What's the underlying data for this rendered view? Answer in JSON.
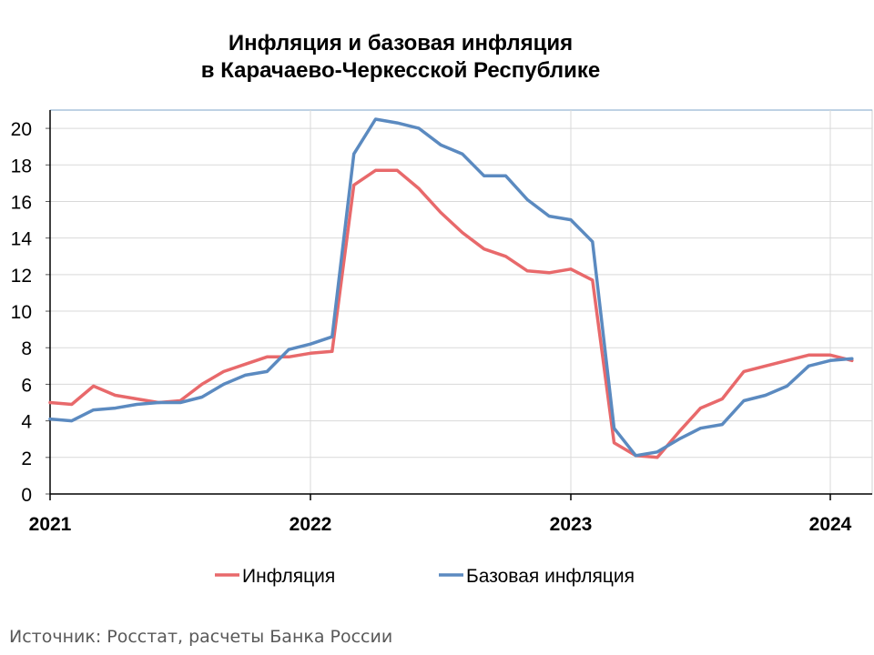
{
  "chart_data": {
    "type": "line",
    "title_line1": "Инфляция и базовая инфляция",
    "title_line2": "в Карачаево-Черкесской Республике",
    "xlabel": "",
    "ylabel": "",
    "ylim": [
      0,
      21
    ],
    "y_ticks": [
      "0",
      "2",
      "4",
      "6",
      "8",
      "10",
      "12",
      "14",
      "16",
      "18",
      "20"
    ],
    "x_ticks": [
      "2021",
      "2022",
      "2023",
      "2024"
    ],
    "grid": true,
    "legend_position": "bottom",
    "x": [
      "2021-01",
      "2021-02",
      "2021-03",
      "2021-04",
      "2021-05",
      "2021-06",
      "2021-07",
      "2021-08",
      "2021-09",
      "2021-10",
      "2021-11",
      "2021-12",
      "2022-01",
      "2022-02",
      "2022-03",
      "2022-04",
      "2022-05",
      "2022-06",
      "2022-07",
      "2022-08",
      "2022-09",
      "2022-10",
      "2022-11",
      "2022-12",
      "2023-01",
      "2023-02",
      "2023-03",
      "2023-04",
      "2023-05",
      "2023-06",
      "2023-07",
      "2023-08",
      "2023-09",
      "2023-10",
      "2023-11",
      "2023-12",
      "2024-01",
      "2024-02"
    ],
    "series": [
      {
        "name": "Инфляция",
        "color": "#e8696b",
        "values": [
          5.0,
          4.9,
          5.9,
          5.4,
          5.2,
          5.0,
          5.1,
          6.0,
          6.7,
          7.1,
          7.5,
          7.5,
          7.7,
          7.8,
          16.9,
          17.7,
          17.7,
          16.7,
          15.4,
          14.3,
          13.4,
          13.0,
          12.2,
          12.1,
          12.3,
          11.7,
          2.8,
          2.1,
          2.0,
          3.4,
          4.7,
          5.2,
          6.7,
          7.0,
          7.3,
          7.6,
          7.6,
          7.3
        ]
      },
      {
        "name": "Базовая инфляция",
        "color": "#5b8ac0",
        "values": [
          4.1,
          4.0,
          4.6,
          4.7,
          4.9,
          5.0,
          5.0,
          5.3,
          6.0,
          6.5,
          6.7,
          7.9,
          8.2,
          8.6,
          18.6,
          20.5,
          20.3,
          20.0,
          19.1,
          18.6,
          17.4,
          17.4,
          16.1,
          15.2,
          15.0,
          13.8,
          3.6,
          2.1,
          2.3,
          3.0,
          3.6,
          3.8,
          5.1,
          5.4,
          5.9,
          7.0,
          7.3,
          7.4
        ]
      }
    ]
  },
  "source": "Источник: Росстат, расчеты Банка России"
}
